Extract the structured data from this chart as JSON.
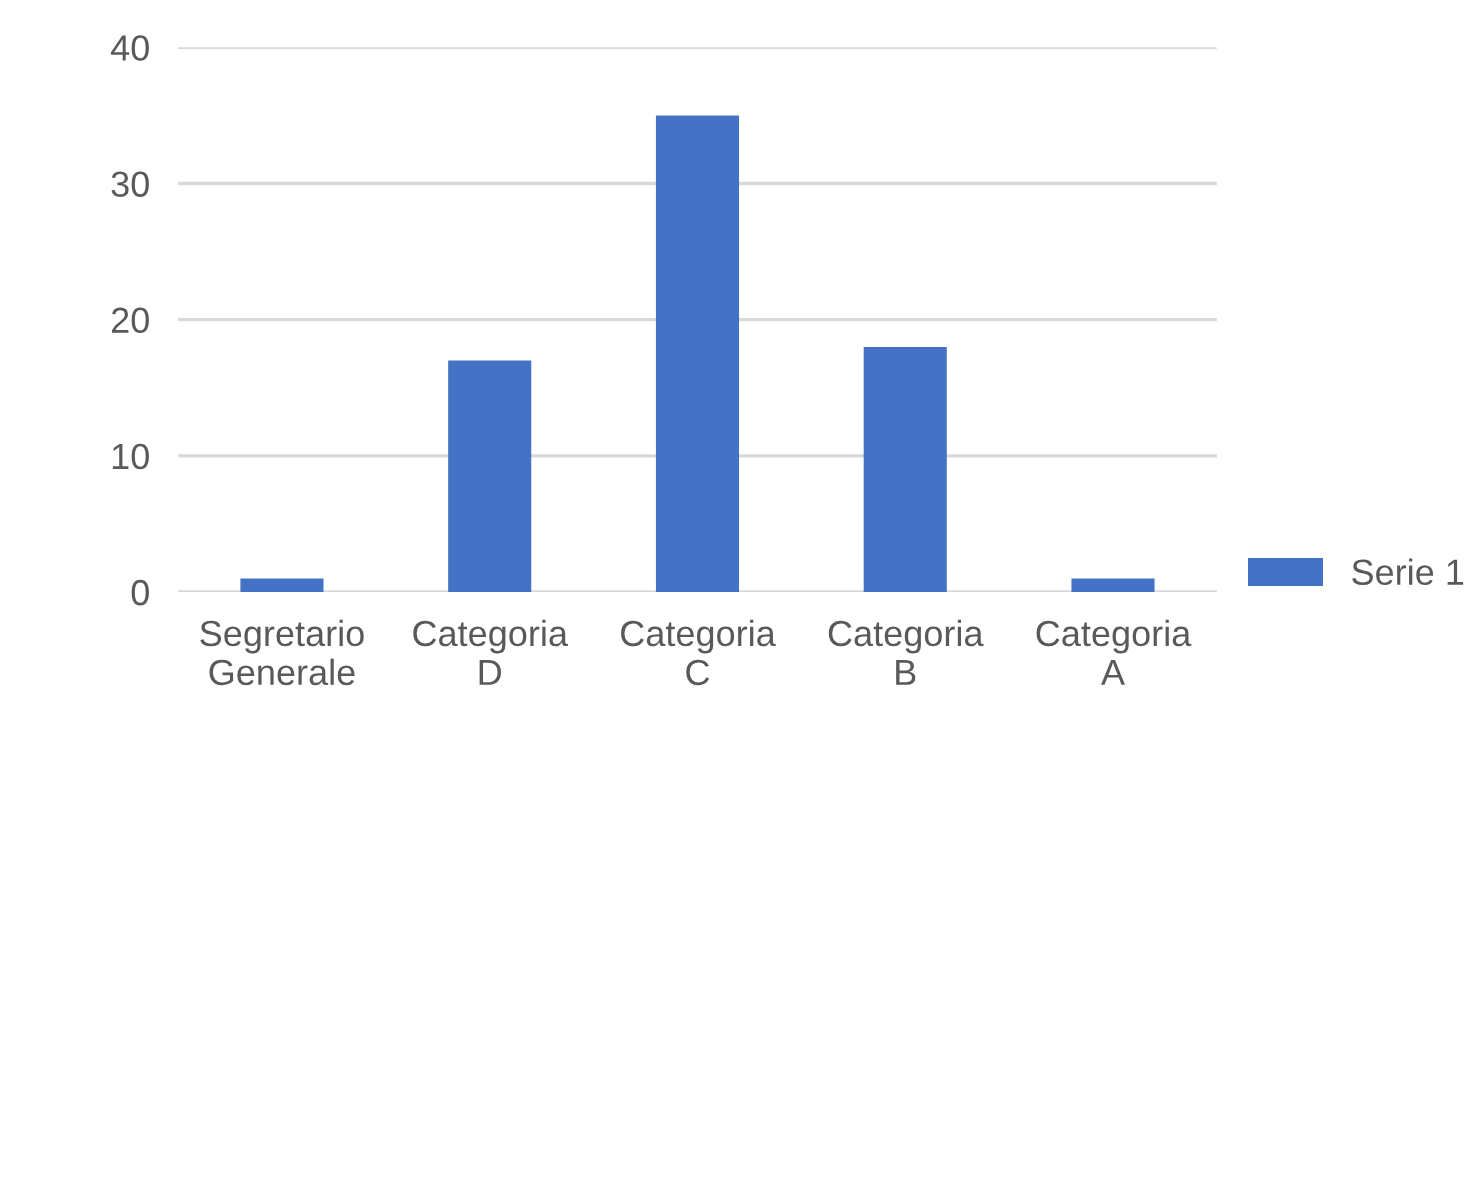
{
  "chart_data": {
    "type": "bar",
    "categories": [
      "Segretario\nGenerale",
      "Categoria\nD",
      "Categoria\nC",
      "Categoria\nB",
      "Categoria\nA"
    ],
    "series": [
      {
        "name": "Serie 1",
        "color": "#4472c4",
        "values": [
          1,
          17,
          35,
          18,
          1
        ]
      }
    ],
    "ylim": [
      0,
      40
    ],
    "yticks": [
      0,
      10,
      20,
      30,
      40
    ],
    "grid": "y",
    "legend": "right"
  }
}
